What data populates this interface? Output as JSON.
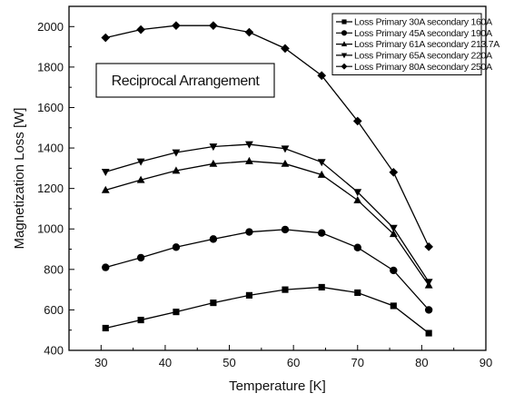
{
  "chart_data": {
    "type": "line",
    "title": "",
    "xlabel": "Temperature [K]",
    "ylabel": "Magnetization Loss [W]",
    "xlim": [
      25,
      90
    ],
    "ylim": [
      400,
      2100
    ],
    "xticks": [
      30,
      40,
      50,
      60,
      70,
      80,
      90
    ],
    "yticks": [
      400,
      600,
      800,
      1000,
      1200,
      1400,
      1600,
      1800,
      2000
    ],
    "grid": false,
    "legend_position": "top-right",
    "annotation": "Reciprocal Arrangement",
    "x": [
      30.7,
      36.2,
      41.7,
      47.5,
      53.1,
      58.7,
      64.4,
      70.0,
      75.6,
      81.1
    ],
    "series": [
      {
        "name": "Loss Primary 30A secondary 160A",
        "marker": "square",
        "values": [
          510,
          550,
          590,
          635,
          672,
          700,
          712,
          685,
          620,
          485
        ]
      },
      {
        "name": "Loss Primary 45A secondary 190A",
        "marker": "circle",
        "values": [
          810,
          858,
          910,
          950,
          985,
          997,
          980,
          908,
          795,
          600
        ]
      },
      {
        "name": "Loss Primary 61A secondary 213.7A",
        "marker": "triangle-up",
        "values": [
          1192,
          1242,
          1288,
          1322,
          1335,
          1322,
          1268,
          1142,
          975,
          722
        ]
      },
      {
        "name": "Loss Primary 65A secondary 220A",
        "marker": "triangle-down",
        "values": [
          1282,
          1333,
          1378,
          1407,
          1418,
          1397,
          1330,
          1182,
          1005,
          738
        ]
      },
      {
        "name": "Loss Primary 80A secondary 250A",
        "marker": "diamond",
        "values": [
          1945,
          1985,
          2005,
          2005,
          1972,
          1892,
          1758,
          1533,
          1280,
          912
        ]
      }
    ]
  }
}
